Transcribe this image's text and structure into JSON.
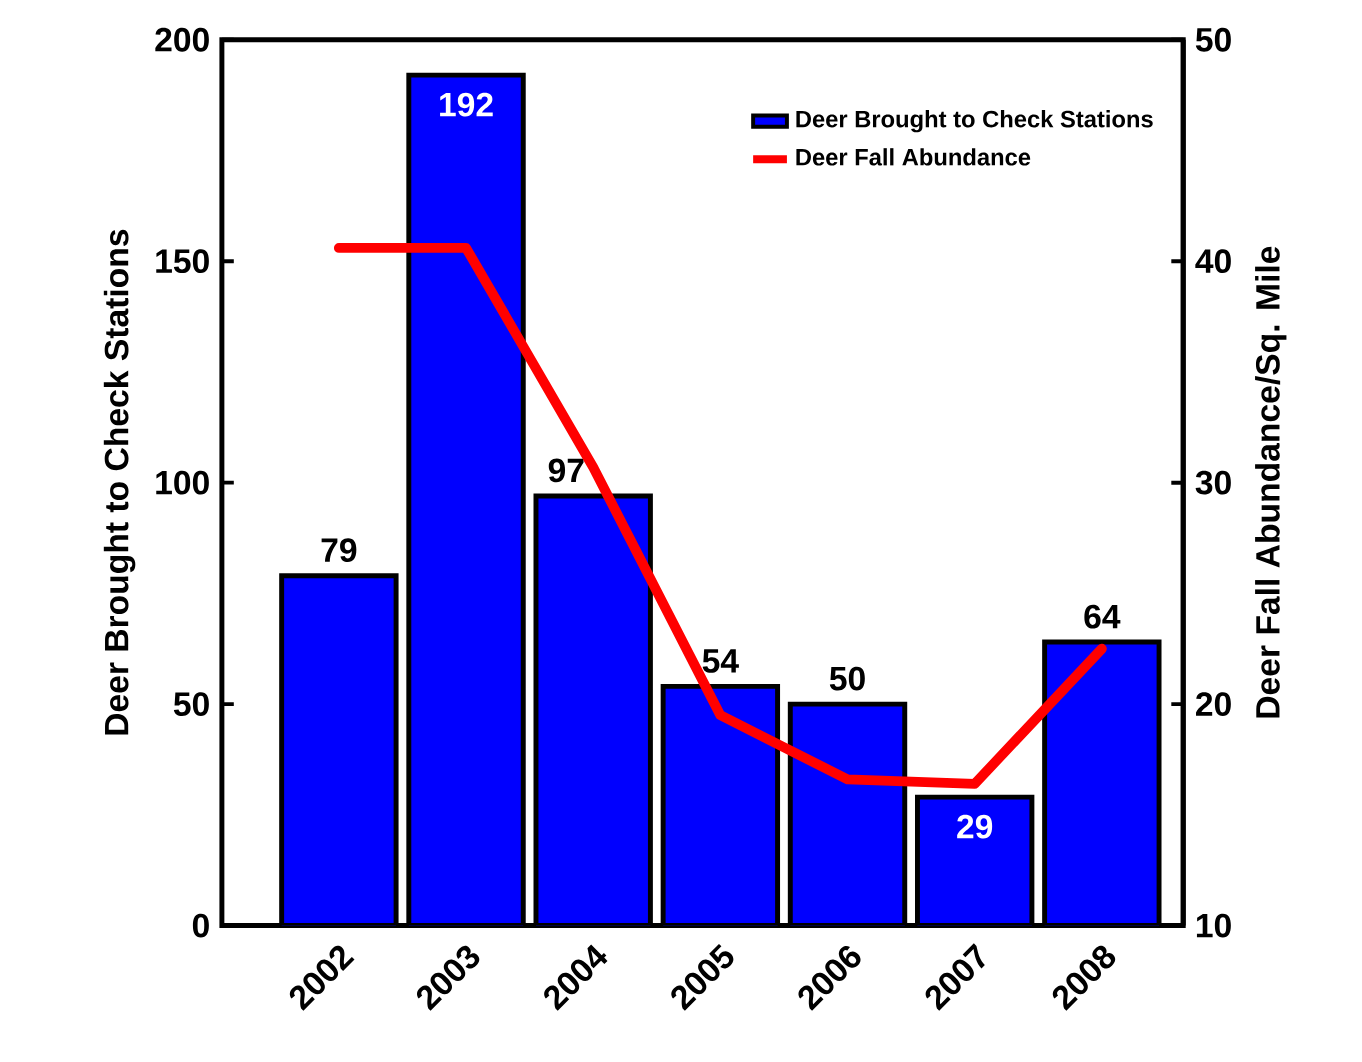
{
  "chart_data": {
    "type": "bar",
    "xlabel": null,
    "ylabel": "Deer Brought to Check Stations",
    "y2label": "Deer Fall Abundance/Sq. Mile",
    "categories": [
      "2002",
      "2003",
      "2004",
      "2005",
      "2006",
      "2007",
      "2008"
    ],
    "series": [
      {
        "name": "Deer Brought to Check Stations",
        "color": "#0000ff",
        "axis": "y",
        "values": [
          79,
          192,
          97,
          54,
          50,
          29,
          64
        ],
        "value_labels": [
          "79",
          "192",
          "97",
          "54",
          "50",
          "29",
          "64"
        ]
      },
      {
        "name": "Deer Fall Abundance",
        "type": "line",
        "color": "#ff0000",
        "axis": "y2",
        "values": [
          40.6,
          40.6,
          30.7,
          19.5,
          16.6,
          16.4,
          22.5
        ]
      }
    ],
    "ylim": [
      0,
      200
    ],
    "yticks": [
      0,
      50,
      100,
      150,
      200
    ],
    "y2lim": [
      10,
      50
    ],
    "y2ticks": [
      10,
      20,
      30,
      40,
      50
    ],
    "legend": "top right"
  }
}
